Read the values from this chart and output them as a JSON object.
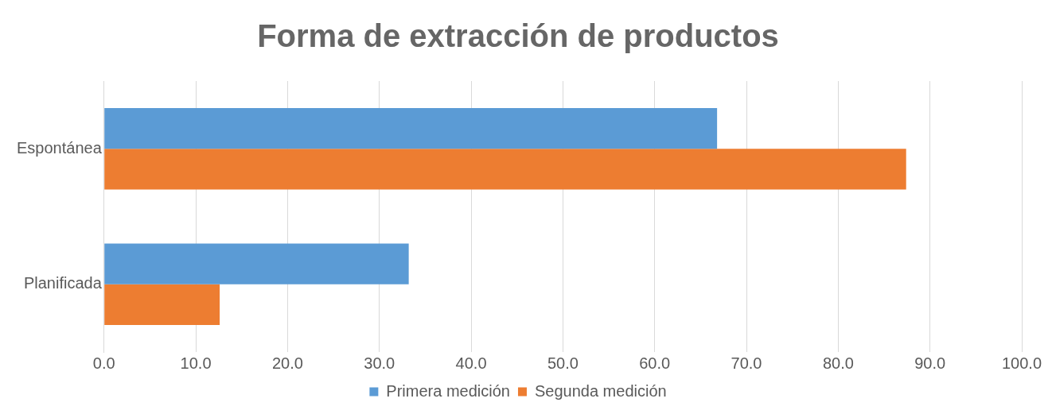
{
  "chart_data": {
    "type": "bar",
    "orientation": "horizontal",
    "title": "Forma de extracción de productos",
    "categories": [
      "Espontánea",
      "Planificada"
    ],
    "series": [
      {
        "name": "Primera medición",
        "color": "#5b9bd5",
        "values": [
          66.8,
          33.2
        ]
      },
      {
        "name": "Segunda medición",
        "color": "#ed7d31",
        "values": [
          87.4,
          12.6
        ]
      }
    ],
    "xlim": [
      0,
      100
    ],
    "xticks": [
      {
        "value": 0,
        "label": "0.0"
      },
      {
        "value": 10,
        "label": "10.0"
      },
      {
        "value": 20,
        "label": "20.0"
      },
      {
        "value": 30,
        "label": "30.0"
      },
      {
        "value": 40,
        "label": "40.0"
      },
      {
        "value": 50,
        "label": "50.0"
      },
      {
        "value": 60,
        "label": "60.0"
      },
      {
        "value": 70,
        "label": "70.0"
      },
      {
        "value": 80,
        "label": "80.0"
      },
      {
        "value": 90,
        "label": "90.0"
      },
      {
        "value": 100,
        "label": "100.0"
      }
    ],
    "grid": "x",
    "legend": "bottom"
  }
}
